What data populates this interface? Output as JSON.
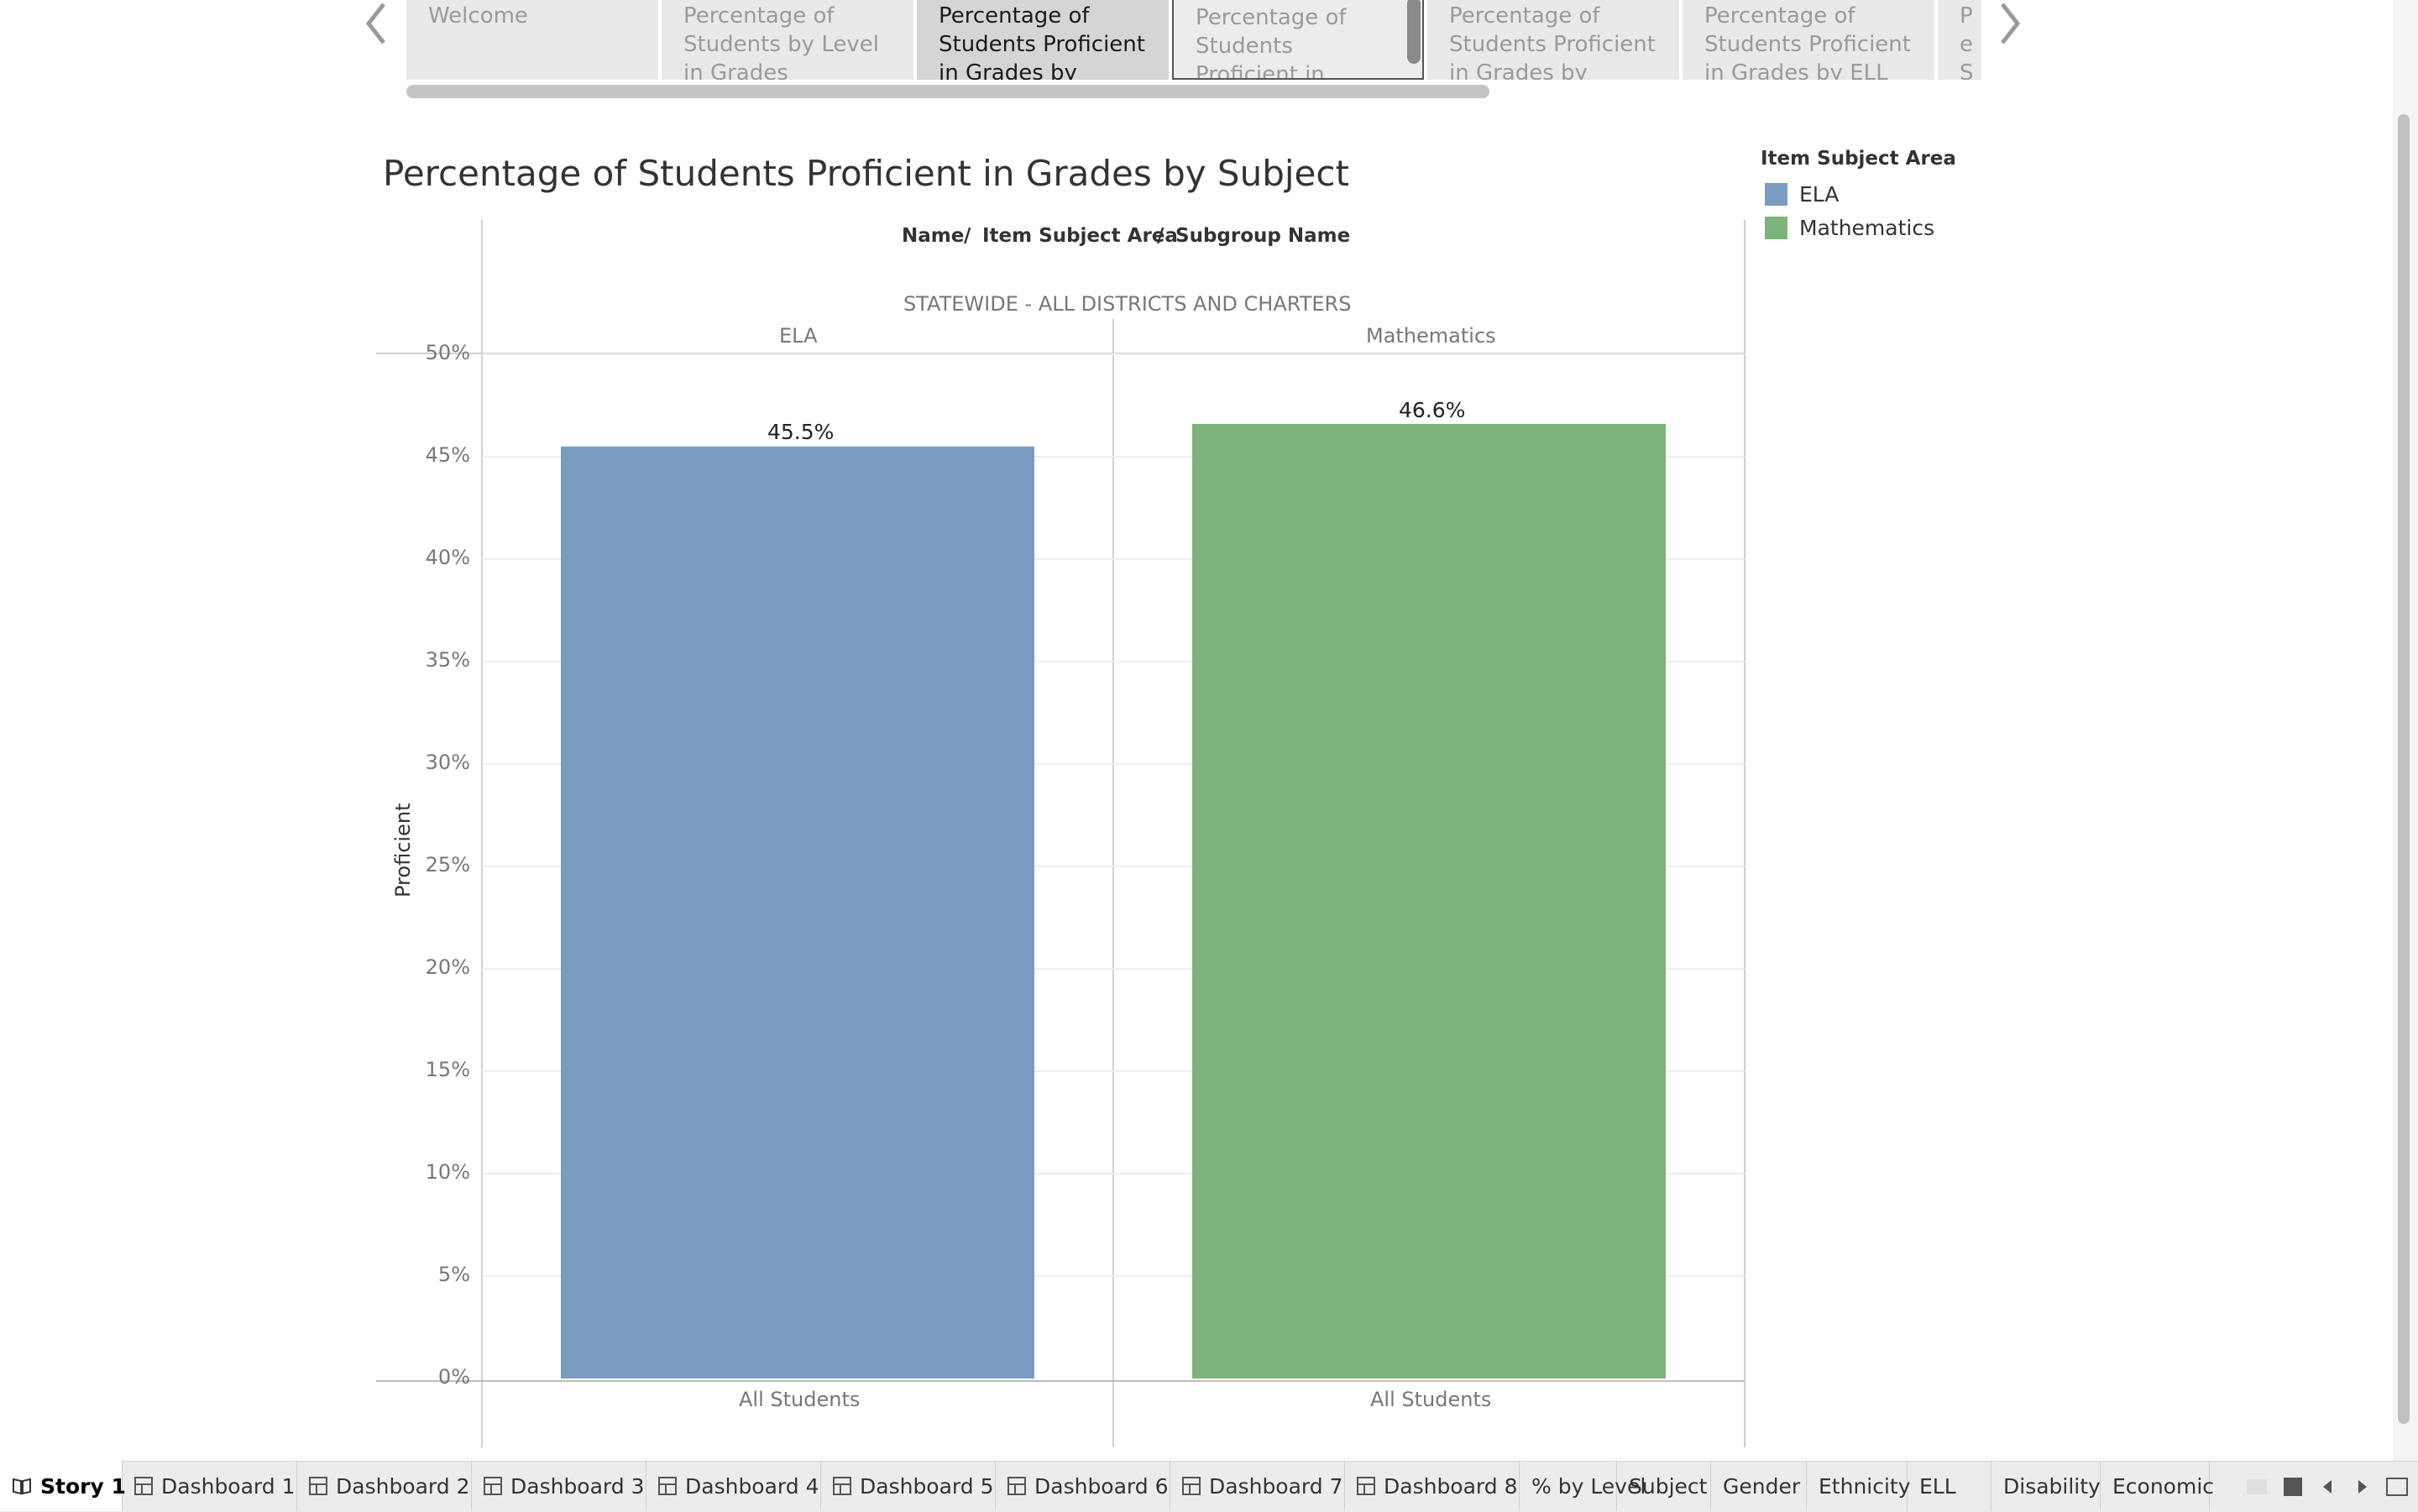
{
  "story_nav": {
    "points": [
      "Welcome",
      "Percentage of Students by Level in Grades",
      "Percentage of Students Proficient in Grades by Subject",
      "Percentage of Students Proficient in Grades by Gender",
      "Percentage of Students Proficient in Grades by Ethnicity",
      "Percentage of Students Proficient in Grades by ELL Status",
      "Pe Stu Gr"
    ],
    "active_index": 2
  },
  "viz": {
    "title": "Percentage of Students Proficient in Grades by Subject",
    "header_fields": [
      "Name",
      "/",
      "Item Subject Area",
      "/",
      "Subgroup Name"
    ],
    "district": "STATEWIDE - ALL DISTRICTS AND CHARTERS"
  },
  "legend": {
    "title": "Item Subject Area",
    "items": [
      {
        "label": "ELA",
        "color": "#7a9cc1"
      },
      {
        "label": "Mathematics",
        "color": "#7db37a"
      }
    ]
  },
  "chart_data": {
    "type": "bar",
    "title": "Percentage of Students Proficient in Grades by Subject",
    "ylabel": "Proficient",
    "xlabel": "",
    "ylim": [
      0,
      50
    ],
    "y_ticks": [
      "0%",
      "5%",
      "10%",
      "15%",
      "20%",
      "25%",
      "30%",
      "35%",
      "40%",
      "45%",
      "50%"
    ],
    "grid": true,
    "legend_position": "top-right",
    "columns": [
      "ELA",
      "Mathematics"
    ],
    "categories": [
      "All Students",
      "All Students"
    ],
    "values": [
      45.5,
      46.6
    ],
    "value_labels": [
      "45.5%",
      "46.6%"
    ],
    "colors": [
      "#7a9cc1",
      "#7db37a"
    ]
  },
  "bottom_tabs": [
    {
      "label": "Story 1",
      "icon": "story-icon",
      "active": true
    },
    {
      "label": "Dashboard 1",
      "icon": "dashboard-icon"
    },
    {
      "label": "Dashboard 2",
      "icon": "dashboard-icon"
    },
    {
      "label": "Dashboard 3",
      "icon": "dashboard-icon"
    },
    {
      "label": "Dashboard 4",
      "icon": "dashboard-icon"
    },
    {
      "label": "Dashboard 5",
      "icon": "dashboard-icon"
    },
    {
      "label": "Dashboard 6",
      "icon": "dashboard-icon"
    },
    {
      "label": "Dashboard 7",
      "icon": "dashboard-icon"
    },
    {
      "label": "Dashboard 8",
      "icon": "dashboard-icon"
    },
    {
      "label": "% by Level",
      "icon": ""
    },
    {
      "label": "Subject",
      "icon": ""
    },
    {
      "label": "Gender",
      "icon": ""
    },
    {
      "label": "Ethnicity",
      "icon": ""
    },
    {
      "label": "ELL",
      "icon": ""
    },
    {
      "label": "Disability",
      "icon": ""
    },
    {
      "label": "Economic",
      "icon": ""
    }
  ]
}
